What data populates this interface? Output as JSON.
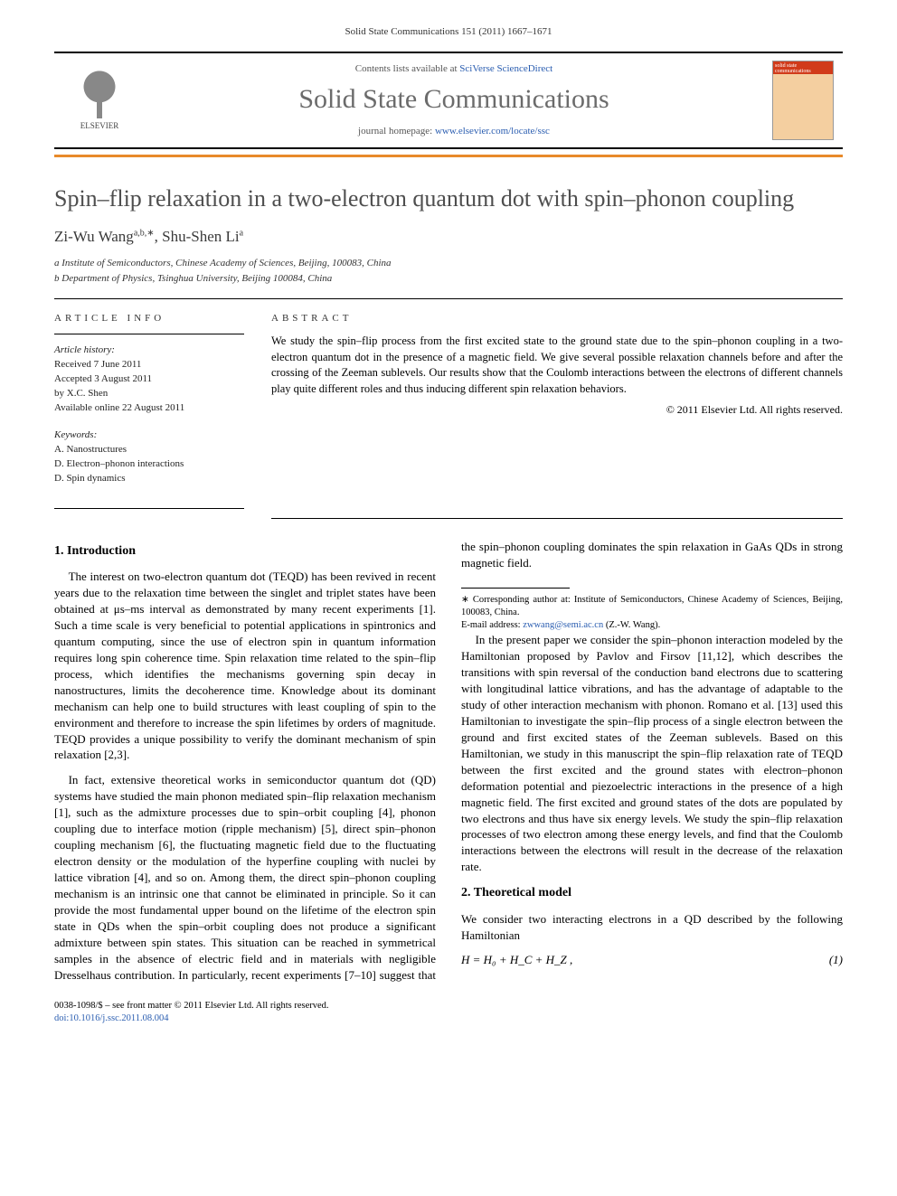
{
  "running_head": "Solid State Communications 151 (2011) 1667–1671",
  "header": {
    "contents_prefix": "Contents lists available at ",
    "contents_link": "SciVerse ScienceDirect",
    "journal_name": "Solid State Communications",
    "homepage_prefix": "journal homepage: ",
    "homepage_link": "www.elsevier.com/locate/ssc",
    "publisher": "ELSEVIER",
    "cover_text": "solid state communications",
    "orange_bar_color": "#e88a2a"
  },
  "title": "Spin–flip relaxation in a two-electron quantum dot with spin–phonon coupling",
  "authors": [
    {
      "name": "Zi-Wu Wang",
      "marks": "a,b,∗"
    },
    {
      "name": "Shu-Shen Li",
      "marks": "a"
    }
  ],
  "authors_line": "Zi-Wu Wang a,b,∗, Shu-Shen Li a",
  "affiliations": [
    "a Institute of Semiconductors, Chinese Academy of Sciences, Beijing, 100083, China",
    "b Department of Physics, Tsinghua University, Beijing 100084, China"
  ],
  "article_info": {
    "label": "ARTICLE INFO",
    "history_label": "Article history:",
    "history": [
      "Received 7 June 2011",
      "Accepted 3 August 2011",
      "by X.C. Shen",
      "Available online 22 August 2011"
    ],
    "keywords_label": "Keywords:",
    "keywords": [
      "A. Nanostructures",
      "D. Electron–phonon interactions",
      "D. Spin dynamics"
    ]
  },
  "abstract": {
    "label": "ABSTRACT",
    "text": "We study the spin–flip process from the first excited state to the ground state due to the spin–phonon coupling in a two-electron quantum dot in the presence of a magnetic field. We give several possible relaxation channels before and after the crossing of the Zeeman sublevels. Our results show that the Coulomb interactions between the electrons of different channels play quite different roles and thus inducing different spin relaxation behaviors.",
    "copyright": "© 2011 Elsevier Ltd. All rights reserved."
  },
  "sections": {
    "intro_heading": "1. Introduction",
    "intro_p1": "The interest on two-electron quantum dot (TEQD) has been revived in recent years due to the relaxation time between the singlet and triplet states have been obtained at μs–ms interval as demonstrated by many recent experiments [1]. Such a time scale is very beneficial to potential applications in spintronics and quantum computing, since the use of electron spin in quantum information requires long spin coherence time. Spin relaxation time related to the spin–flip process, which identifies the mechanisms governing spin decay in nanostructures, limits the decoherence time. Knowledge about its dominant mechanism can help one to build structures with least coupling of spin to the environment and therefore to increase the spin lifetimes by orders of magnitude. TEQD provides a unique possibility to verify the dominant mechanism of spin relaxation [2,3].",
    "intro_p2": "In fact, extensive theoretical works in semiconductor quantum dot (QD) systems have studied the main phonon mediated spin–flip relaxation mechanism [1], such as the admixture processes due to spin–orbit coupling [4], phonon coupling due to interface motion (ripple mechanism) [5], direct spin–phonon coupling mechanism [6], the fluctuating magnetic field due to the fluctuating electron density or the modulation of the hyperfine coupling with nuclei by lattice vibration [4], and so on. Among them, the direct spin–phonon coupling mechanism is an intrinsic one that cannot be eliminated in principle. So it can provide the most fundamental upper bound on the lifetime of the electron spin state in QDs when the spin–orbit coupling does not produce a significant admixture between spin states. This situation can be reached in symmetrical samples in the absence of electric field and in materials with negligible Dresselhaus contribution. In particularly, recent experiments [7–10] suggest that the spin–phonon coupling dominates the spin relaxation in GaAs QDs in strong magnetic field.",
    "intro_p3": "In the present paper we consider the spin–phonon interaction modeled by the Hamiltonian proposed by Pavlov and Firsov [11,12], which describes the transitions with spin reversal of the conduction band electrons due to scattering with longitudinal lattice vibrations, and has the advantage of adaptable to the study of other interaction mechanism with phonon. Romano et al. [13] used this Hamiltonian to investigate the spin–flip process of a single electron between the ground and first excited states of the Zeeman sublevels. Based on this Hamiltonian, we study in this manuscript the spin–flip relaxation rate of TEQD between the first excited and the ground states with electron–phonon deformation potential and piezoelectric interactions in the presence of a high magnetic field. The first excited and ground states of the dots are populated by two electrons and thus have six energy levels. We study the spin–flip relaxation processes of two electron among these energy levels, and find that the Coulomb interactions between the electrons will result in the decrease of the relaxation rate.",
    "model_heading": "2. Theoretical model",
    "model_p1": "We consider two interacting electrons in a QD described by the following Hamiltonian",
    "eq1_lhs": "H = H₀ + H_C + H_Z ,",
    "eq1_num": "(1)"
  },
  "footnotes": {
    "corr": "∗ Corresponding author at: Institute of Semiconductors, Chinese Academy of Sciences, Beijing, 100083, China.",
    "email_label": "E-mail address: ",
    "email": "zwwang@semi.ac.cn",
    "email_who": " (Z.-W. Wang)."
  },
  "footer": {
    "line1": "0038-1098/$ – see front matter © 2011 Elsevier Ltd. All rights reserved.",
    "doi": "doi:10.1016/j.ssc.2011.08.004"
  },
  "colors": {
    "title_gray": "#4e4e4e",
    "link_blue": "#2a5db0",
    "rule_black": "#000000",
    "cover_red": "#d13b1a",
    "cover_tan": "#f4cfa0"
  },
  "typography": {
    "body_pt": 13,
    "title_pt": 26,
    "journal_pt": 30,
    "authors_pt": 17,
    "small_pt": 11,
    "tiny_pt": 10.5
  }
}
